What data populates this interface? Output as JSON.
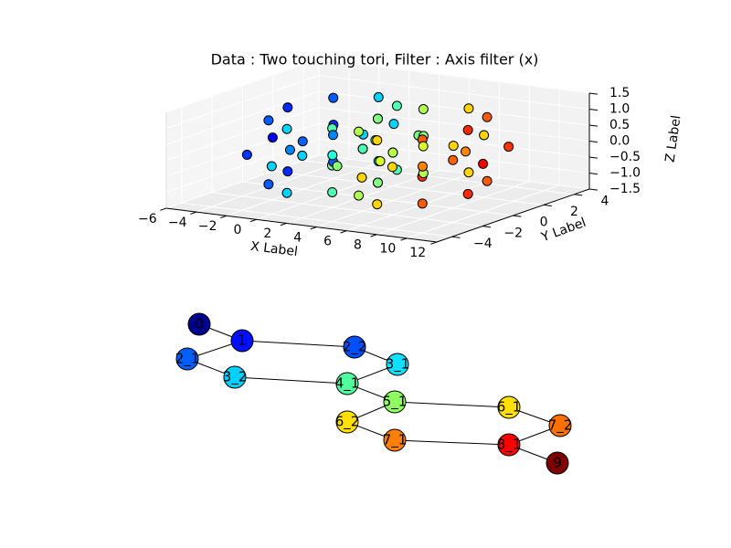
{
  "chart_data": {
    "type": "scatter3d",
    "title": "Data : Two touching tori, Filter : Axis filter (x)",
    "xlabel": "X Label",
    "ylabel": "Y Label",
    "zlabel": "Z Label",
    "colormap": "jet",
    "xlim": [
      -6,
      12
    ],
    "ylim": [
      -5,
      5
    ],
    "zlim": [
      -1.5,
      1.5
    ],
    "xticks": [
      {
        "value": -6,
        "label": "−6"
      },
      {
        "value": -4,
        "label": "−4"
      },
      {
        "value": -2,
        "label": "−2"
      },
      0,
      2,
      4,
      6,
      8,
      10,
      12
    ],
    "yticks": [
      {
        "value": -4,
        "label": "−4"
      },
      {
        "value": -2,
        "label": "−2"
      },
      0,
      2,
      4
    ],
    "zticks": [
      {
        "value": -1.5,
        "label": "−1.5"
      },
      {
        "value": -1,
        "label": "−1.0"
      },
      {
        "value": -0.5,
        "label": "−0.5"
      },
      {
        "value": 0,
        "label": "0.0"
      },
      0.5,
      {
        "value": 1,
        "label": "1.0"
      },
      1.5
    ],
    "x": [
      4,
      2.83,
      0,
      -2.83,
      -4,
      -2.83,
      0,
      2.83,
      3,
      2.12,
      0,
      -2.12,
      -3,
      -2.12,
      0,
      2.12,
      3,
      2.12,
      0,
      -2.12,
      -3,
      -2.12,
      0,
      2.12,
      2,
      1.41,
      0,
      -1.41,
      -2,
      -1.41,
      0,
      1.41,
      10,
      8.83,
      6,
      3.17,
      2,
      3.17,
      6,
      8.83,
      9,
      8.12,
      6,
      3.88,
      3,
      3.88,
      6,
      8.12,
      9,
      8.12,
      6,
      3.88,
      3,
      3.88,
      6,
      8.12,
      8,
      7.41,
      6,
      4.59,
      4,
      4.59,
      6,
      7.41
    ],
    "y": [
      0,
      2.83,
      4,
      2.83,
      0,
      -2.83,
      -4,
      -2.83,
      0,
      2.12,
      3,
      2.12,
      0,
      -2.12,
      -3,
      -2.12,
      0,
      2.12,
      3,
      2.12,
      0,
      -2.12,
      -3,
      -2.12,
      0,
      1.41,
      2,
      1.41,
      0,
      -1.41,
      -2,
      -1.41,
      0,
      2.83,
      4,
      2.83,
      0,
      -2.83,
      -4,
      -2.83,
      0,
      2.12,
      3,
      2.12,
      0,
      -2.12,
      -3,
      -2.12,
      0,
      2.12,
      3,
      2.12,
      0,
      -2.12,
      -3,
      -2.12,
      0,
      1.41,
      2,
      1.41,
      0,
      -1.41,
      -2,
      -1.41
    ],
    "z": [
      0,
      0,
      0,
      0,
      0,
      0,
      0,
      0,
      1,
      1,
      1,
      1,
      1,
      1,
      1,
      1,
      -1,
      -1,
      -1,
      -1,
      -1,
      -1,
      -1,
      -1,
      0,
      0,
      0,
      0,
      0,
      0,
      0,
      0,
      0,
      0,
      0,
      0,
      0,
      0,
      0,
      0,
      1,
      1,
      1,
      1,
      1,
      1,
      1,
      1,
      -1,
      -1,
      -1,
      -1,
      -1,
      -1,
      -1,
      -1,
      0,
      0,
      0,
      0,
      0,
      0,
      0,
      0
    ]
  },
  "graph": {
    "nodes": [
      {
        "label": "0",
        "color": "#00008f"
      },
      {
        "label": "1",
        "color": "#0010ff"
      },
      {
        "label": "2_1",
        "color": "#0060ff"
      },
      {
        "label": "2_2",
        "color": "#0050ff"
      },
      {
        "label": "3_2",
        "color": "#00d0ff"
      },
      {
        "label": "3_1",
        "color": "#10e0ff"
      },
      {
        "label": "4_1",
        "color": "#50ffa0"
      },
      {
        "label": "5_1",
        "color": "#90ff60"
      },
      {
        "label": "6_2",
        "color": "#ffe000"
      },
      {
        "label": "7_1",
        "color": "#ff8000"
      },
      {
        "label": "6_1",
        "color": "#ffe000"
      },
      {
        "label": "7_2",
        "color": "#ff7000"
      },
      {
        "label": "8_1",
        "color": "#ff0000"
      },
      {
        "label": "9",
        "color": "#800000"
      }
    ],
    "edges": [
      [
        0,
        1
      ],
      [
        1,
        2
      ],
      [
        1,
        3
      ],
      [
        2,
        4
      ],
      [
        4,
        6
      ],
      [
        3,
        5
      ],
      [
        5,
        6
      ],
      [
        6,
        7
      ],
      [
        7,
        8
      ],
      [
        7,
        10
      ],
      [
        8,
        9
      ],
      [
        9,
        12
      ],
      [
        10,
        11
      ],
      [
        11,
        12
      ],
      [
        12,
        13
      ]
    ]
  }
}
